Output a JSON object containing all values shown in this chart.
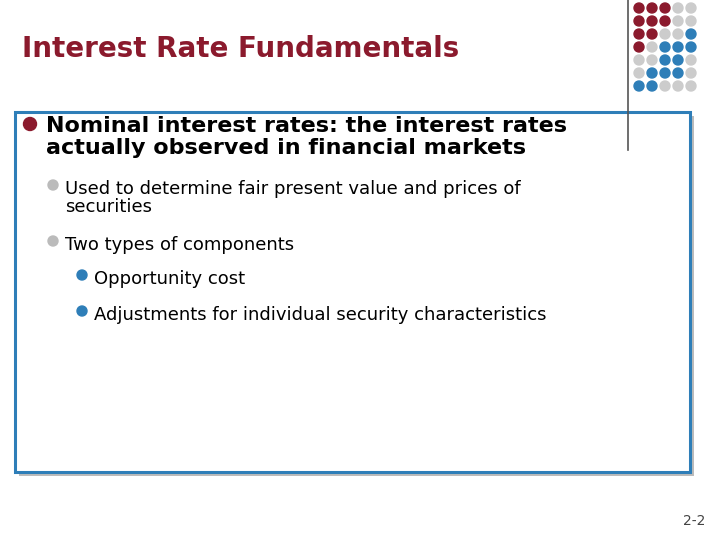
{
  "title": "Interest Rate Fundamentals",
  "title_color": "#8B1A2D",
  "title_fontsize": 20,
  "bg_color": "#FFFFFF",
  "content_box_border_color": "#2E7EB8",
  "content_box_bg": "#FFFFFF",
  "bullet1_line1": "Nominal interest rates: the interest rates",
  "bullet1_line2": "actually observed in financial markets",
  "bullet1_color": "#000000",
  "bullet1_fontsize": 16,
  "bullet1_marker_color": "#8B1A2D",
  "sub_bullet1_line1": "Used to determine fair present value and prices of",
  "sub_bullet1_line2": "securities",
  "sub_bullet2_text": "Two types of components",
  "sub_bullet_color": "#000000",
  "sub_bullet_fontsize": 13,
  "sub_bullet_marker_color": "#BBBBBB",
  "sub_sub_bullet1_text": "Opportunity cost",
  "sub_sub_bullet2_text": "Adjustments for individual security characteristics",
  "sub_sub_bullet_fontsize": 13,
  "sub_sub_marker_color": "#2E7EB8",
  "page_num": "2-2",
  "dot_colors_grid": [
    [
      "#8B1A2D",
      "#8B1A2D",
      "#8B1A2D",
      "#CCCCCC",
      "#CCCCCC"
    ],
    [
      "#8B1A2D",
      "#8B1A2D",
      "#8B1A2D",
      "#CCCCCC",
      "#CCCCCC"
    ],
    [
      "#8B1A2D",
      "#8B1A2D",
      "#CCCCCC",
      "#CCCCCC",
      "#2E7EB8"
    ],
    [
      "#8B1A2D",
      "#CCCCCC",
      "#2E7EB8",
      "#2E7EB8",
      "#2E7EB8"
    ],
    [
      "#CCCCCC",
      "#CCCCCC",
      "#2E7EB8",
      "#2E7EB8",
      "#CCCCCC"
    ],
    [
      "#CCCCCC",
      "#2E7EB8",
      "#2E7EB8",
      "#2E7EB8",
      "#CCCCCC"
    ],
    [
      "#2E7EB8",
      "#2E7EB8",
      "#CCCCCC",
      "#CCCCCC",
      "#CCCCCC"
    ]
  ],
  "divider_line_color": "#555555",
  "shadow_color": "#BBBBBB"
}
